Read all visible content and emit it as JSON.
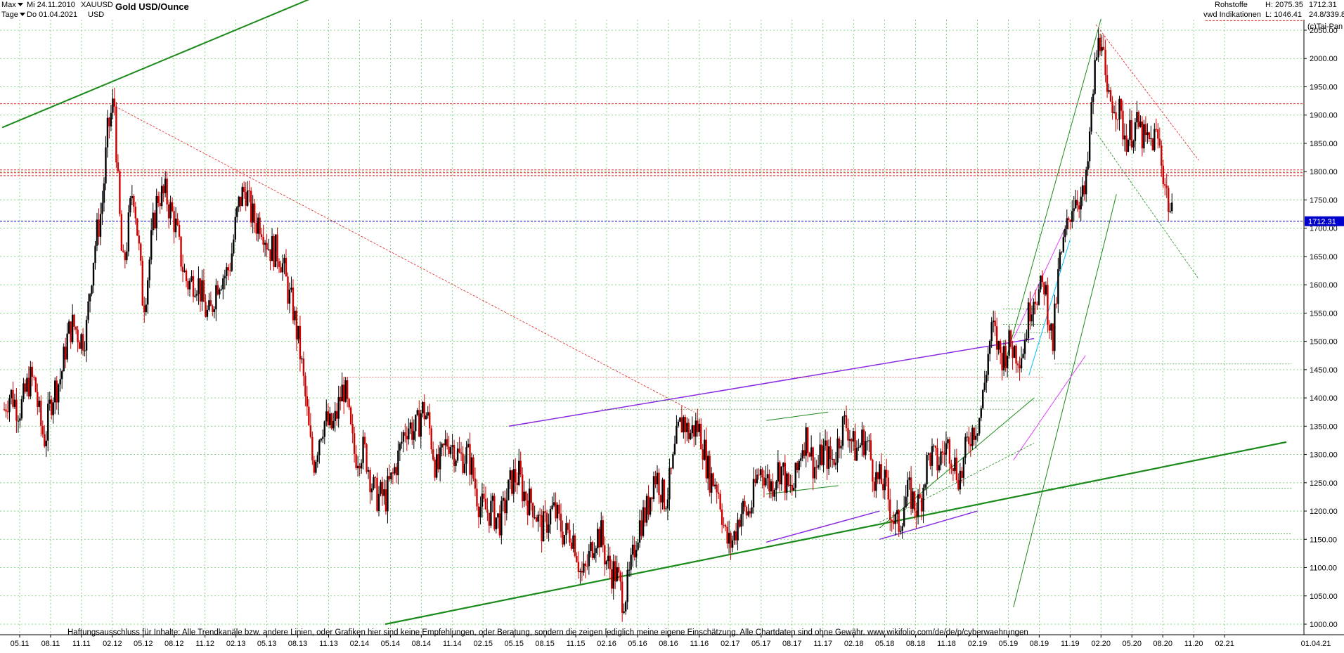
{
  "header": {
    "range_select": "Max",
    "interval_select": "Tage",
    "date_from": "Mi 24.11.2010",
    "date_to": "Do 01.04.2021",
    "symbol": "XAUUSD",
    "currency": "USD",
    "title": "Gold USD/Ounce",
    "category": "Rohstoffe",
    "source": "vwd Indikationen",
    "high_label": "H: 2075.35",
    "low_label": "L: 1046.41",
    "last_value": "1712.31",
    "range_info": "24.8/339.8",
    "copyright": "(c)Tai-Pan"
  },
  "disclaimer": "Haftungsausschluss für Inhalte: Alle Trendkanäle bzw. andere Linien, oder Grafiken hier sind keine Empfehlungen, oder Beratung, sondern die zeigen lediglich meine eigene Einschätzung. Alle Chartdaten sind ohne Gewähr.  www.wikifolio.com/de/de/p/cyberwaehrungen",
  "colors": {
    "candle_up": "#000000",
    "candle_down": "#cc0000",
    "grid": "#66cc66",
    "resistance": "#e02020",
    "current_price": "#0000cc",
    "trend_green": "#1a8a1a",
    "trend_purple": "#8a2be2",
    "trend_cyan": "#00bfff",
    "trend_magenta": "#e040fb"
  },
  "chart_data": {
    "type": "candlestick",
    "title": "Gold USD/Ounce",
    "xlabel": "",
    "ylabel": "",
    "ylim": [
      1000,
      2100
    ],
    "y_ticks": [
      1000,
      1050,
      1100,
      1150,
      1200,
      1250,
      1300,
      1350,
      1400,
      1450,
      1500,
      1550,
      1600,
      1650,
      1700,
      1750,
      1800,
      1850,
      1900,
      1950,
      2000,
      2050
    ],
    "x_ticks": [
      "05.11",
      "08.11",
      "11.11",
      "02.12",
      "05.12",
      "08.12",
      "11.12",
      "02.13",
      "05.13",
      "08.13",
      "11.13",
      "02.14",
      "05.14",
      "08.14",
      "11.14",
      "02.15",
      "05.15",
      "08.15",
      "11.15",
      "02.16",
      "05.16",
      "08.16",
      "11.16",
      "02.17",
      "05.17",
      "08.17",
      "11.17",
      "02.18",
      "05.18",
      "08.18",
      "11.18",
      "02.19",
      "05.19",
      "08.19",
      "11.19",
      "02.20",
      "05.20",
      "08.20",
      "11.20",
      "02.21"
    ],
    "x_end_label": "01.04.21",
    "current_price": 1712.31,
    "high": 2075.35,
    "low": 1046.41,
    "price_path": [
      {
        "month": 0,
        "price": 1380
      },
      {
        "month": 3,
        "price": 1420
      },
      {
        "month": 4,
        "price": 1330
      },
      {
        "month": 6,
        "price": 1500
      },
      {
        "month": 8,
        "price": 1530
      },
      {
        "month": 9.5,
        "price": 1760
      },
      {
        "month": 10,
        "price": 1870
      },
      {
        "month": 10.7,
        "price": 1905
      },
      {
        "month": 11,
        "price": 1780
      },
      {
        "month": 11.5,
        "price": 1640
      },
      {
        "month": 12.5,
        "price": 1760
      },
      {
        "month": 13.5,
        "price": 1580
      },
      {
        "month": 15,
        "price": 1750
      },
      {
        "month": 15.7,
        "price": 1780
      },
      {
        "month": 17,
        "price": 1650
      },
      {
        "month": 19,
        "price": 1580
      },
      {
        "month": 20,
        "price": 1560
      },
      {
        "month": 21,
        "price": 1600
      },
      {
        "month": 22,
        "price": 1660
      },
      {
        "month": 23.5,
        "price": 1780
      },
      {
        "month": 24.5,
        "price": 1700
      },
      {
        "month": 26,
        "price": 1680
      },
      {
        "month": 27,
        "price": 1620
      },
      {
        "month": 28,
        "price": 1580
      },
      {
        "month": 29,
        "price": 1420
      },
      {
        "month": 30,
        "price": 1300
      },
      {
        "month": 31,
        "price": 1340
      },
      {
        "month": 33,
        "price": 1400
      },
      {
        "month": 34,
        "price": 1320
      },
      {
        "month": 36,
        "price": 1250
      },
      {
        "month": 37,
        "price": 1200
      },
      {
        "month": 38,
        "price": 1300
      },
      {
        "month": 39,
        "price": 1330
      },
      {
        "month": 40.5,
        "price": 1380
      },
      {
        "month": 42,
        "price": 1290
      },
      {
        "month": 44,
        "price": 1320
      },
      {
        "month": 46,
        "price": 1240
      },
      {
        "month": 47,
        "price": 1180
      },
      {
        "month": 49,
        "price": 1220
      },
      {
        "month": 50,
        "price": 1280
      },
      {
        "month": 51,
        "price": 1200
      },
      {
        "month": 53,
        "price": 1180
      },
      {
        "month": 54,
        "price": 1190
      },
      {
        "month": 55,
        "price": 1150
      },
      {
        "month": 56,
        "price": 1100
      },
      {
        "month": 57,
        "price": 1120
      },
      {
        "month": 58,
        "price": 1170
      },
      {
        "month": 59,
        "price": 1080
      },
      {
        "month": 60,
        "price": 1060
      },
      {
        "month": 61,
        "price": 1100
      },
      {
        "month": 62,
        "price": 1200
      },
      {
        "month": 63,
        "price": 1250
      },
      {
        "month": 64,
        "price": 1230
      },
      {
        "month": 65,
        "price": 1280
      },
      {
        "month": 66,
        "price": 1370
      },
      {
        "month": 67,
        "price": 1340
      },
      {
        "month": 68,
        "price": 1310
      },
      {
        "month": 69,
        "price": 1250
      },
      {
        "month": 70,
        "price": 1160
      },
      {
        "month": 71,
        "price": 1160
      },
      {
        "month": 72,
        "price": 1200
      },
      {
        "month": 73,
        "price": 1250
      },
      {
        "month": 74,
        "price": 1260
      },
      {
        "month": 75,
        "price": 1270
      },
      {
        "month": 76,
        "price": 1240
      },
      {
        "month": 77,
        "price": 1270
      },
      {
        "month": 78,
        "price": 1330
      },
      {
        "month": 79,
        "price": 1280
      },
      {
        "month": 80,
        "price": 1290
      },
      {
        "month": 81,
        "price": 1330
      },
      {
        "month": 82,
        "price": 1340
      },
      {
        "month": 83,
        "price": 1320
      },
      {
        "month": 84,
        "price": 1300
      },
      {
        "month": 85,
        "price": 1260
      },
      {
        "month": 86,
        "price": 1200
      },
      {
        "month": 87,
        "price": 1190
      },
      {
        "month": 88,
        "price": 1220
      },
      {
        "month": 89,
        "price": 1230
      },
      {
        "month": 90,
        "price": 1290
      },
      {
        "month": 91,
        "price": 1310
      },
      {
        "month": 92,
        "price": 1290
      },
      {
        "month": 93,
        "price": 1280
      },
      {
        "month": 94,
        "price": 1330
      },
      {
        "month": 95,
        "price": 1410
      },
      {
        "month": 96,
        "price": 1510
      },
      {
        "month": 97,
        "price": 1490
      },
      {
        "month": 98,
        "price": 1470
      },
      {
        "month": 99,
        "price": 1510
      },
      {
        "month": 100,
        "price": 1570
      },
      {
        "month": 101,
        "price": 1620
      },
      {
        "month": 101.8,
        "price": 1470
      },
      {
        "month": 102.5,
        "price": 1650
      },
      {
        "month": 103,
        "price": 1700
      },
      {
        "month": 104,
        "price": 1740
      },
      {
        "month": 105,
        "price": 1780
      },
      {
        "month": 106,
        "price": 1980
      },
      {
        "month": 106.6,
        "price": 2060
      },
      {
        "month": 107,
        "price": 1940
      },
      {
        "month": 108,
        "price": 1900
      },
      {
        "month": 109,
        "price": 1880
      },
      {
        "month": 110,
        "price": 1860
      },
      {
        "month": 111,
        "price": 1870
      },
      {
        "month": 112,
        "price": 1840
      },
      {
        "month": 113,
        "price": 1770
      },
      {
        "month": 113.5,
        "price": 1710
      }
    ],
    "annotations": [
      {
        "type": "hline",
        "price": 1920,
        "style": "dotted",
        "color": "#e02020"
      },
      {
        "type": "hline",
        "price": 1803,
        "style": "dotted",
        "color": "#e02020"
      },
      {
        "type": "hline",
        "price": 1798,
        "style": "dotted",
        "color": "#e02020"
      },
      {
        "type": "hline",
        "price": 1793,
        "style": "dotted",
        "color": "#e02020"
      },
      {
        "type": "hline",
        "price": 1712.31,
        "style": "dotted",
        "color": "#0000cc"
      },
      {
        "type": "hline",
        "price": 2067,
        "style": "dotted",
        "color": "#e02020"
      }
    ]
  }
}
